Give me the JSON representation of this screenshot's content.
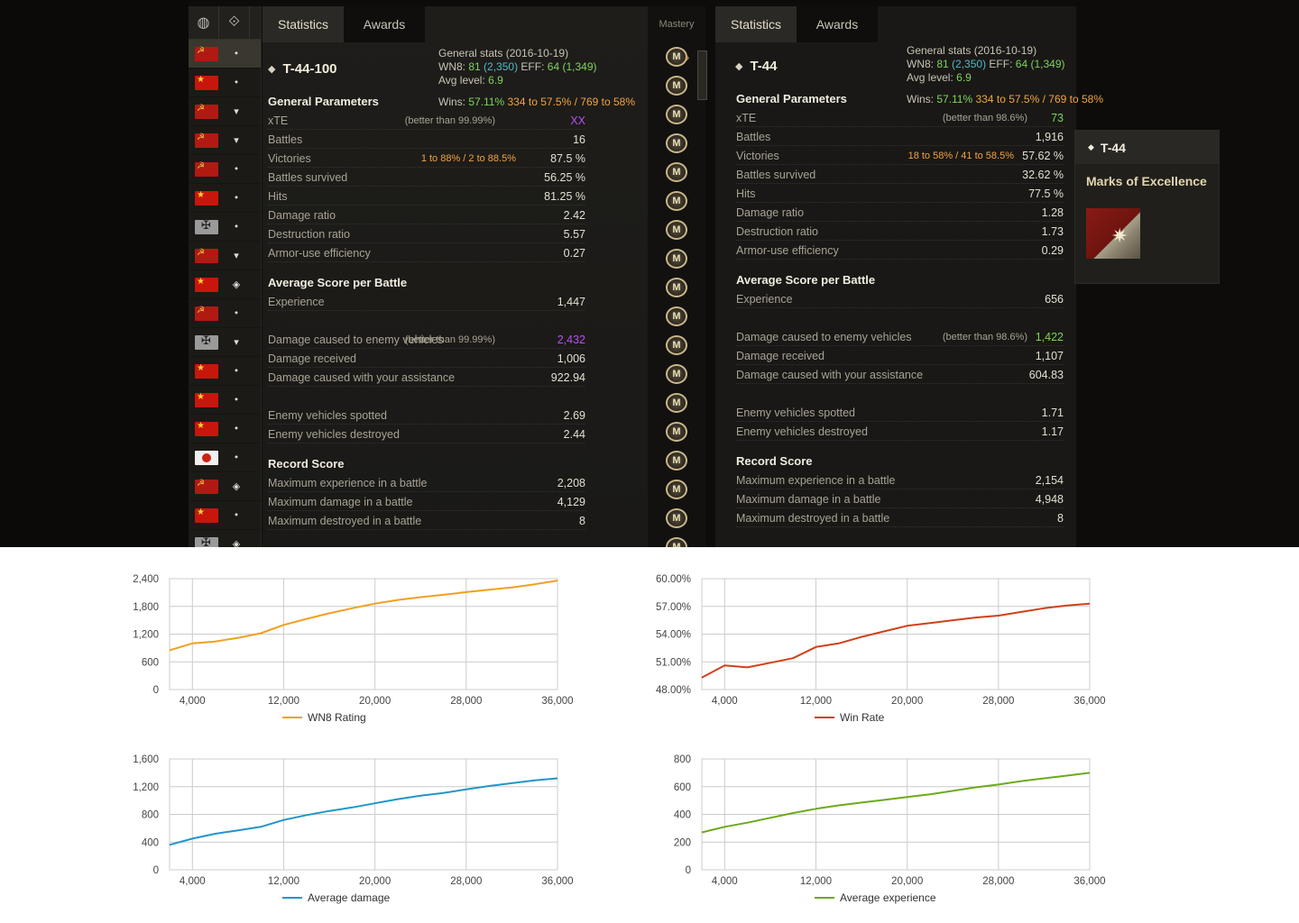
{
  "tabs": {
    "statistics": "Statistics",
    "awards": "Awards",
    "mastery": "Mastery"
  },
  "vehicle_list": {
    "rows": [
      {
        "flag": "ussr",
        "class": "⬩"
      },
      {
        "flag": "china",
        "class": "⬩"
      },
      {
        "flag": "ussr",
        "class": "▾"
      },
      {
        "flag": "ussr",
        "class": "▾"
      },
      {
        "flag": "ussr",
        "class": "⬩"
      },
      {
        "flag": "china",
        "class": "⬩"
      },
      {
        "flag": "germany",
        "class": "⬩"
      },
      {
        "flag": "ussr",
        "class": "▾"
      },
      {
        "flag": "china",
        "class": "◈"
      },
      {
        "flag": "ussr",
        "class": "⬩"
      },
      {
        "flag": "germany",
        "class": "▾"
      },
      {
        "flag": "china",
        "class": "⬩"
      },
      {
        "flag": "china",
        "class": "⬩"
      },
      {
        "flag": "china",
        "class": "⬩"
      },
      {
        "flag": "japan",
        "class": "⬩"
      },
      {
        "flag": "ussr",
        "class": "◈"
      },
      {
        "flag": "china",
        "class": "⬩"
      },
      {
        "flag": "germany",
        "class": "◈"
      }
    ]
  },
  "left_panel": {
    "vehicle": "T-44-100",
    "general_stats": "General stats (2016-10-19)",
    "wn8_label": "WN8:",
    "wn8": "81",
    "wn8_paren": "(2,350)",
    "eff_label": "EFF:",
    "eff": "64",
    "eff_paren": "(1,349)",
    "avg_level_label": "Avg level:",
    "avg_level": "6.9",
    "general_params": "General Parameters",
    "wins_label": "Wins:",
    "wins": "57.11%",
    "wins_to1": "334",
    "wins_to1_pct": "57.5%",
    "wins_to2": "769",
    "wins_to2_pct": "58%",
    "rows": [
      {
        "label": "xTE",
        "note": "(better than 99.99%)",
        "value": "XX"
      },
      {
        "label": "Battles",
        "value": "16"
      },
      {
        "label": "Victories",
        "note": "1 to 88% / 2 to 88.5%",
        "value": "87.5 %"
      },
      {
        "label": "Battles survived",
        "value": "56.25 %"
      },
      {
        "label": "Hits",
        "value": "81.25 %"
      },
      {
        "label": "Damage ratio",
        "value": "2.42"
      },
      {
        "label": "Destruction ratio",
        "value": "5.57"
      },
      {
        "label": "Armor-use efficiency",
        "value": "0.27"
      }
    ],
    "avg_score": "Average Score per Battle",
    "avg_rows": [
      {
        "label": "Experience",
        "value": "1,447"
      },
      {
        "label": "Damage caused to enemy vehicles",
        "note": "(better than 99.99%)",
        "value": "2,432"
      },
      {
        "label": "Damage received",
        "value": "1,006"
      },
      {
        "label": "Damage caused with your assistance",
        "value": "922.94"
      },
      {
        "label": "Enemy vehicles spotted",
        "value": "2.69"
      },
      {
        "label": "Enemy vehicles destroyed",
        "value": "2.44"
      }
    ],
    "record_score": "Record Score",
    "record_rows": [
      {
        "label": "Maximum experience in a battle",
        "value": "2,208"
      },
      {
        "label": "Maximum damage in a battle",
        "value": "4,129"
      },
      {
        "label": "Maximum destroyed in a battle",
        "value": "8"
      }
    ]
  },
  "right_panel": {
    "vehicle": "T-44",
    "general_stats": "General stats (2016-10-19)",
    "wn8_label": "WN8:",
    "wn8": "81",
    "wn8_paren": "(2,350)",
    "eff_label": "EFF:",
    "eff": "64",
    "eff_paren": "(1,349)",
    "avg_level_label": "Avg level:",
    "avg_level": "6.9",
    "general_params": "General Parameters",
    "wins_label": "Wins:",
    "wins": "57.11%",
    "wins_to1": "334",
    "wins_to1_pct": "57.5%",
    "wins_to2": "769",
    "wins_to2_pct": "58%",
    "rows": [
      {
        "label": "xTE",
        "note": "(better than 98.6%)",
        "value": "73"
      },
      {
        "label": "Battles",
        "value": "1,916"
      },
      {
        "label": "Victories",
        "note": "18 to 58% / 41 to 58.5%",
        "value": "57.62 %"
      },
      {
        "label": "Battles survived",
        "value": "32.62 %"
      },
      {
        "label": "Hits",
        "value": "77.5 %"
      },
      {
        "label": "Damage ratio",
        "value": "1.28"
      },
      {
        "label": "Destruction ratio",
        "value": "1.73"
      },
      {
        "label": "Armor-use efficiency",
        "value": "0.29"
      }
    ],
    "avg_score": "Average Score per Battle",
    "avg_rows": [
      {
        "label": "Experience",
        "value": "656"
      },
      {
        "label": "Damage caused to enemy vehicles",
        "note": "(better than 98.6%)",
        "value": "1,422"
      },
      {
        "label": "Damage received",
        "value": "1,107"
      },
      {
        "label": "Damage caused with your assistance",
        "value": "604.83"
      },
      {
        "label": "Enemy vehicles spotted",
        "value": "1.71"
      },
      {
        "label": "Enemy vehicles destroyed",
        "value": "1.17"
      }
    ],
    "record_score": "Record Score",
    "record_rows": [
      {
        "label": "Maximum experience in a battle",
        "value": "2,154"
      },
      {
        "label": "Maximum damage in a battle",
        "value": "4,948"
      },
      {
        "label": "Maximum destroyed in a battle",
        "value": "8"
      }
    ]
  },
  "moe_card": {
    "vehicle": "T-44",
    "title": "Marks of Excellence"
  },
  "mastery": {
    "count": 18,
    "glyph": "M"
  },
  "chart_data": [
    {
      "type": "line",
      "x": [
        2000,
        4000,
        6000,
        8000,
        10000,
        12000,
        14000,
        16000,
        18000,
        20000,
        22000,
        24000,
        26000,
        28000,
        30000,
        32000,
        34000,
        36000
      ],
      "series": [
        {
          "name": "WN8 Rating",
          "values": [
            850,
            1000,
            1040,
            1120,
            1220,
            1400,
            1530,
            1650,
            1760,
            1860,
            1940,
            2000,
            2050,
            2110,
            2160,
            2210,
            2280,
            2360
          ]
        }
      ],
      "xticks": [
        "4,000",
        "12,000",
        "20,000",
        "28,000",
        "36,000"
      ],
      "yticks": [
        "0",
        "600",
        "1,200",
        "1,800",
        "2,400"
      ],
      "ylim": [
        0,
        2400
      ],
      "xlim": [
        2000,
        36000
      ],
      "color": "#f0a020"
    },
    {
      "type": "line",
      "x": [
        2000,
        4000,
        6000,
        8000,
        10000,
        12000,
        14000,
        16000,
        18000,
        20000,
        22000,
        24000,
        26000,
        28000,
        30000,
        32000,
        34000,
        36000
      ],
      "series": [
        {
          "name": "Win Rate",
          "values": [
            49.3,
            50.6,
            50.4,
            50.9,
            51.4,
            52.6,
            53.0,
            53.7,
            54.3,
            54.9,
            55.2,
            55.5,
            55.8,
            56.0,
            56.4,
            56.8,
            57.1,
            57.3
          ]
        }
      ],
      "xticks": [
        "4,000",
        "12,000",
        "20,000",
        "28,000",
        "36,000"
      ],
      "yticks": [
        "48.00%",
        "51.00%",
        "54.00%",
        "57.00%",
        "60.00%"
      ],
      "ylim": [
        48,
        60
      ],
      "xlim": [
        2000,
        36000
      ],
      "color": "#d0401c"
    },
    {
      "type": "line",
      "x": [
        2000,
        4000,
        6000,
        8000,
        10000,
        12000,
        14000,
        16000,
        18000,
        20000,
        22000,
        24000,
        26000,
        28000,
        30000,
        32000,
        34000,
        36000
      ],
      "series": [
        {
          "name": "Average damage",
          "values": [
            360,
            450,
            520,
            570,
            620,
            720,
            790,
            850,
            900,
            960,
            1020,
            1070,
            1110,
            1160,
            1210,
            1250,
            1290,
            1320
          ]
        }
      ],
      "xticks": [
        "4,000",
        "12,000",
        "20,000",
        "28,000",
        "36,000"
      ],
      "yticks": [
        "0",
        "400",
        "800",
        "1,200",
        "1,600"
      ],
      "ylim": [
        0,
        1600
      ],
      "xlim": [
        2000,
        36000
      ],
      "color": "#2196c8"
    },
    {
      "type": "line",
      "x": [
        2000,
        4000,
        6000,
        8000,
        10000,
        12000,
        14000,
        16000,
        18000,
        20000,
        22000,
        24000,
        26000,
        28000,
        30000,
        32000,
        34000,
        36000
      ],
      "series": [
        {
          "name": "Average experience",
          "values": [
            270,
            310,
            340,
            375,
            410,
            440,
            465,
            485,
            505,
            525,
            545,
            570,
            595,
            615,
            640,
            660,
            680,
            700
          ]
        }
      ],
      "xticks": [
        "4,000",
        "12,000",
        "20,000",
        "28,000",
        "36,000"
      ],
      "yticks": [
        "0",
        "200",
        "400",
        "600",
        "800"
      ],
      "ylim": [
        0,
        800
      ],
      "xlim": [
        2000,
        36000
      ],
      "color": "#6caa1c"
    }
  ]
}
